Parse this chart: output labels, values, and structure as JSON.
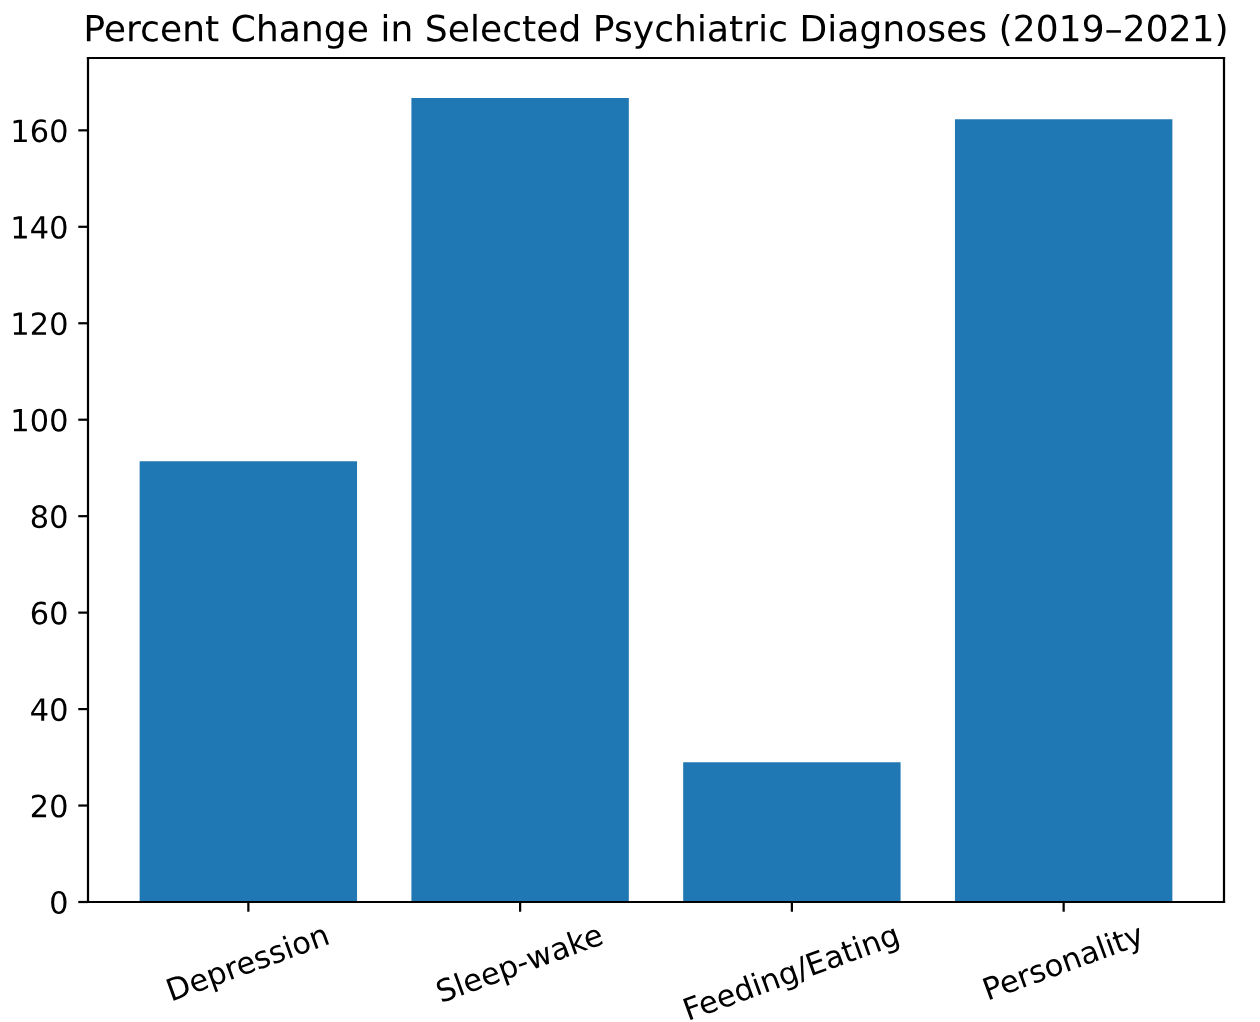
{
  "chart_data": {
    "type": "bar",
    "title": "Percent Change in Selected Psychiatric Diagnoses (2019–2021)",
    "categories": [
      "Depression",
      "Sleep-wake",
      "Feeding/Eating",
      "Personality"
    ],
    "values": [
      91.4,
      166.7,
      29.0,
      162.3
    ],
    "color": "#1f77b4",
    "ylim": [
      0,
      175
    ],
    "yticks": [
      0,
      20,
      40,
      60,
      80,
      100,
      120,
      140,
      160
    ],
    "grid": false
  }
}
